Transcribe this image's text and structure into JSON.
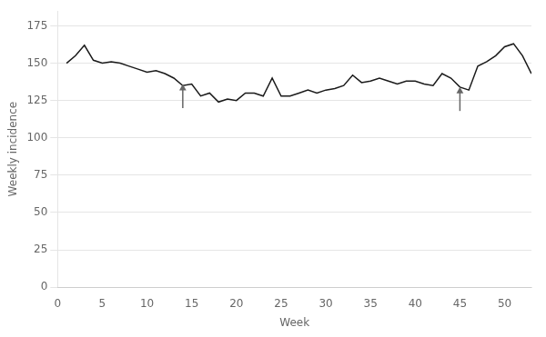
{
  "chart_data": {
    "type": "line",
    "x": [
      1,
      2,
      3,
      4,
      5,
      6,
      7,
      8,
      9,
      10,
      11,
      12,
      13,
      14,
      15,
      16,
      17,
      18,
      19,
      20,
      21,
      22,
      23,
      24,
      25,
      26,
      27,
      28,
      29,
      30,
      31,
      32,
      33,
      34,
      35,
      36,
      37,
      38,
      39,
      40,
      41,
      42,
      43,
      44,
      45,
      46,
      47,
      48,
      49,
      50,
      51,
      52,
      53
    ],
    "values": [
      150,
      155,
      162,
      152,
      150,
      151,
      150,
      148,
      146,
      144,
      145,
      143,
      140,
      135,
      136,
      128,
      130,
      124,
      126,
      125,
      130,
      130,
      128,
      140,
      128,
      128,
      130,
      132,
      130,
      132,
      133,
      135,
      142,
      137,
      138,
      140,
      138,
      136,
      138,
      138,
      136,
      135,
      143,
      140,
      134,
      132,
      148,
      151,
      155,
      161,
      163,
      155,
      143
    ],
    "color": "#1a1a1a",
    "arrows": [
      {
        "x": 14,
        "from": 120,
        "to": 136
      },
      {
        "x": 45,
        "from": 118,
        "to": 134
      }
    ],
    "xlabel": "Week",
    "ylabel": "Weekly incidence",
    "xlim": [
      0,
      53
    ],
    "ylim": [
      0,
      185
    ],
    "xticks": [
      0,
      5,
      10,
      15,
      20,
      25,
      30,
      35,
      40,
      45,
      50
    ],
    "yticks": [
      0,
      25,
      50,
      75,
      100,
      125,
      150,
      175
    ],
    "grid": "y",
    "legend": false
  }
}
